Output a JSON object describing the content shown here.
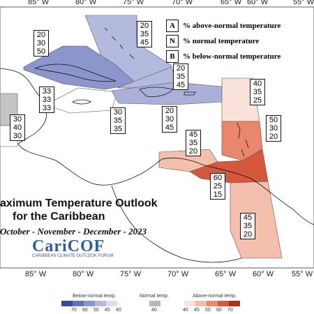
{
  "map": {
    "title_line1": "aximum Temperature Outlook",
    "title_line2": "for the Caribbean",
    "period": "October - November - December - 2023",
    "logo": {
      "name": "CariCOF",
      "subtitle": "CARIBBEAN CLIMATE OUTLOOK FORUM"
    },
    "longitudes": [
      "85° W",
      "80° W",
      "75° W",
      "70° W",
      "65° W",
      "60° W",
      "55° W"
    ],
    "key": [
      {
        "letter": "A",
        "text": "% above-normal temperature"
      },
      {
        "letter": "N",
        "text": "% normal temperature"
      },
      {
        "letter": "B",
        "text": "% below-normal temperature"
      }
    ],
    "regions": [
      {
        "id": "bahamas",
        "probs": [
          "20",
          "35",
          "45"
        ]
      },
      {
        "id": "cuba",
        "probs": [
          "20",
          "30",
          "50"
        ]
      },
      {
        "id": "belize",
        "probs": [
          "33",
          "33",
          "33"
        ]
      },
      {
        "id": "yucatan",
        "probs": [
          "30",
          "40",
          "30"
        ]
      },
      {
        "id": "jamaica",
        "probs": [
          "30",
          "35",
          "35"
        ]
      },
      {
        "id": "turks",
        "probs": [
          "20",
          "35",
          "45"
        ]
      },
      {
        "id": "hispaniola",
        "probs": [
          "20",
          "30",
          "45"
        ]
      },
      {
        "id": "north-leewards",
        "probs": [
          "40",
          "35",
          "25"
        ]
      },
      {
        "id": "windwards",
        "probs": [
          "50",
          "30",
          "20"
        ]
      },
      {
        "id": "abc",
        "probs": [
          "45",
          "35",
          "20"
        ]
      },
      {
        "id": "trinidad",
        "probs": [
          "60",
          "25",
          "15"
        ]
      },
      {
        "id": "guianas",
        "probs": [
          "45",
          "35",
          "20"
        ]
      }
    ],
    "legend": {
      "below": {
        "label": "Below-normal temp.",
        "ticks": [
          "70",
          "60",
          "50",
          "45",
          "40"
        ],
        "colors": [
          "#3b4a9b",
          "#6672b8",
          "#8c95cc",
          "#b4b9de",
          "#dcdff0"
        ]
      },
      "normal": {
        "label": "Normal temp.",
        "ticks": [
          "40"
        ],
        "colors": [
          "#b8b8b8"
        ]
      },
      "above": {
        "label": "Above-normal temp.",
        "ticks": [
          "40",
          "45",
          "50",
          "60",
          "70"
        ],
        "colors": [
          "#fbe3dc",
          "#f5bfae",
          "#e9876c",
          "#d5573c",
          "#b32a1e"
        ]
      }
    }
  }
}
